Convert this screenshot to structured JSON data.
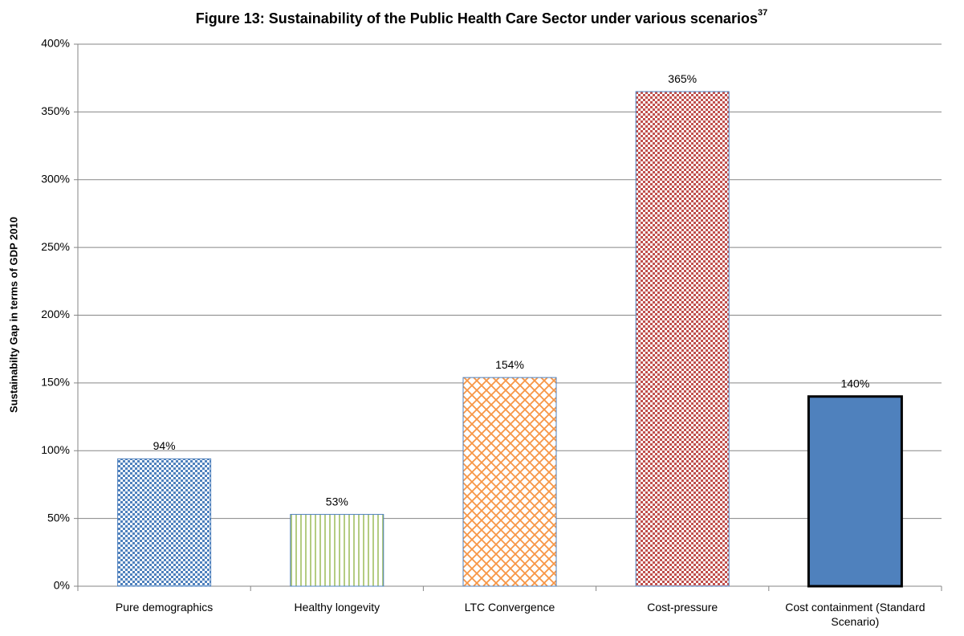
{
  "chart_data": {
    "type": "bar",
    "title": "Figure 13: Sustainability of the Public Health Care Sector under various scenarios",
    "title_superscript": "37",
    "y_label": "Sustainabilty Gap in terms of GDP 2010",
    "categories": [
      "Pure demographics",
      "Healthy longevity",
      "LTC Convergence",
      "Cost-pressure",
      "Cost containment (Standard Scenario)"
    ],
    "values": [
      94,
      53,
      154,
      365,
      140
    ],
    "value_labels": [
      "94%",
      "53%",
      "154%",
      "365%",
      "140%"
    ],
    "colors": [
      "#4f81bd",
      "#9bbb59",
      "#f79646",
      "#c0504d",
      "#4f81bd"
    ],
    "patterns": [
      "checker",
      "vertical",
      "diagonal-cross",
      "checker",
      "solid"
    ],
    "edgecolors": [
      "#4f81bd",
      "#4f81bd",
      "#4f81bd",
      "#4f81bd",
      "#000000"
    ],
    "ylim": [
      0,
      400
    ],
    "yticks": [
      {
        "value": 0,
        "label": "0%"
      },
      {
        "value": 50,
        "label": "50%"
      },
      {
        "value": 100,
        "label": "100%"
      },
      {
        "value": 150,
        "label": "150%"
      },
      {
        "value": 200,
        "label": "200%"
      },
      {
        "value": 250,
        "label": "250%"
      },
      {
        "value": 300,
        "label": "300%"
      },
      {
        "value": 350,
        "label": "350%"
      },
      {
        "value": 400,
        "label": "400%"
      }
    ],
    "grid": true
  }
}
